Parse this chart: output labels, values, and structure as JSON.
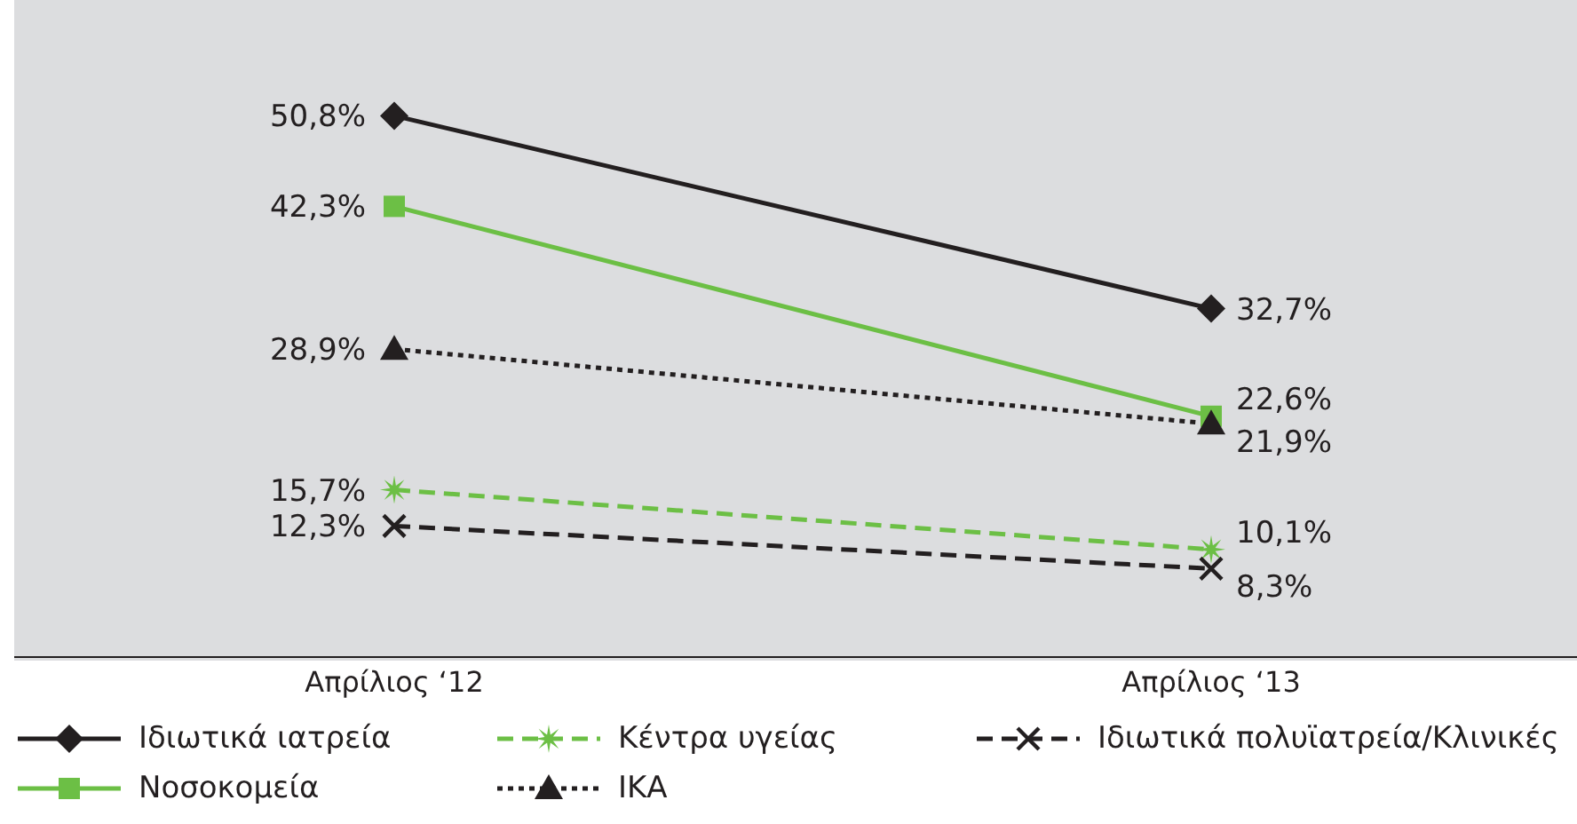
{
  "chart_data": {
    "type": "line",
    "categories": [
      "Απρίλιος ‘12",
      "Απρίλιος ‘13"
    ],
    "series": [
      {
        "name": "Ιδιωτικά ιατρεία",
        "color": "#231f20",
        "values": [
          50.8,
          32.7
        ],
        "value_labels": [
          "50,8%",
          "32,7%"
        ],
        "marker": "diamond",
        "line_style": "solid"
      },
      {
        "name": "Νοσοκομεία",
        "color": "#6cbf45",
        "values": [
          42.3,
          22.6
        ],
        "value_labels": [
          "42,3%",
          "22,6%"
        ],
        "marker": "square",
        "line_style": "solid"
      },
      {
        "name": "Κέντρα υγείας",
        "color": "#6cbf45",
        "values": [
          15.7,
          10.1
        ],
        "value_labels": [
          "15,7%",
          "10,1%"
        ],
        "marker": "star",
        "line_style": "dashed"
      },
      {
        "name": "ΙΚΑ",
        "color": "#231f20",
        "values": [
          28.9,
          21.9
        ],
        "value_labels": [
          "28,9%",
          "21,9%"
        ],
        "marker": "triangle",
        "line_style": "dotted"
      },
      {
        "name": "Ιδιωτικά πολυϊατρεία/Κλινικές",
        "color": "#231f20",
        "values": [
          12.3,
          8.3
        ],
        "value_labels": [
          "12,3%",
          "8,3%"
        ],
        "marker": "cross",
        "line_style": "dashed"
      }
    ],
    "legend": "bottom"
  }
}
